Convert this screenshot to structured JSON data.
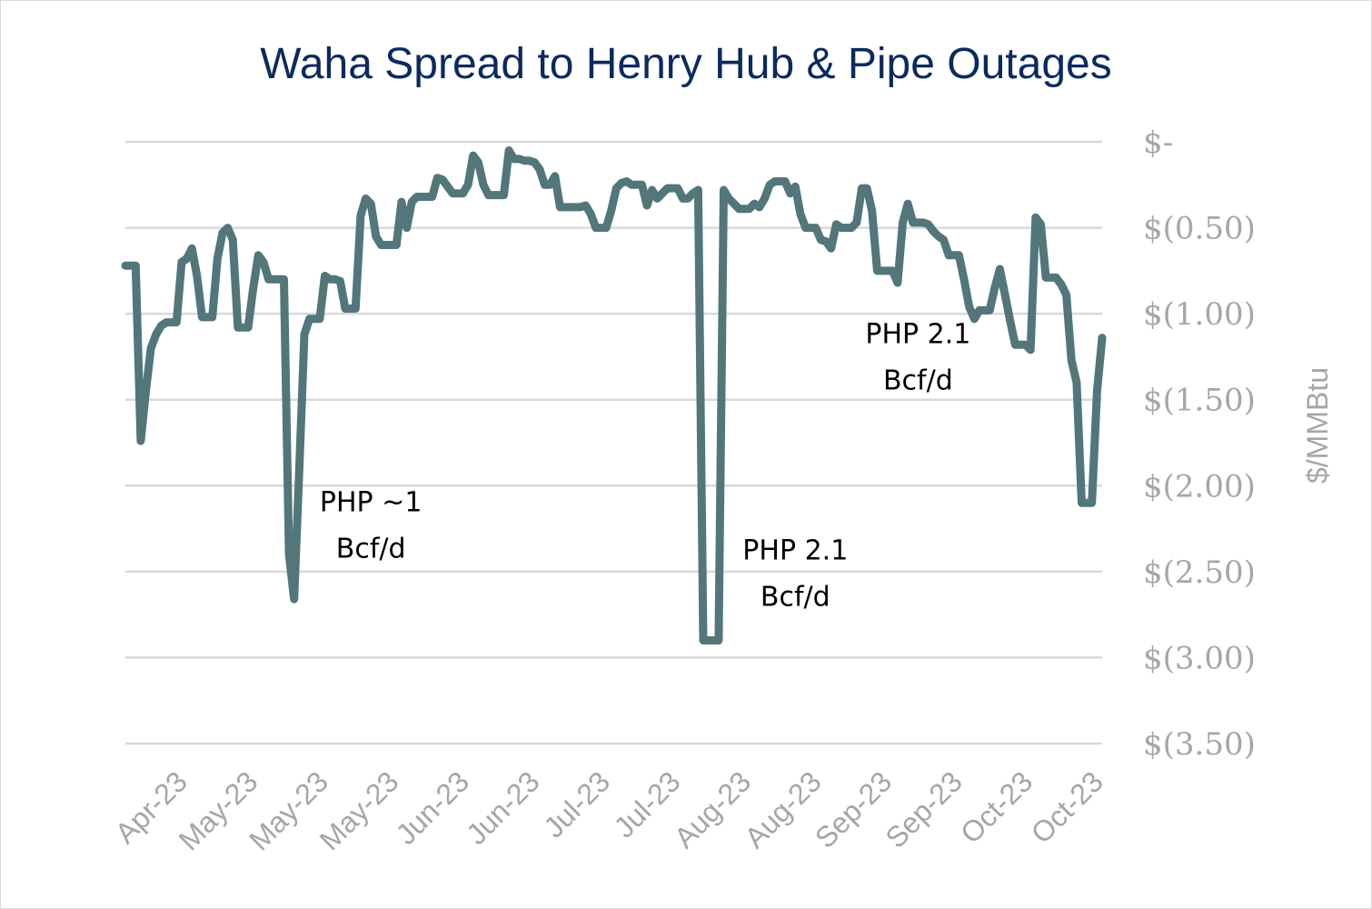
{
  "chart_data": {
    "type": "line",
    "title": "Waha Spread to Henry Hub & Pipe Outages",
    "ylabel": "$/MMBtu",
    "xlabel": "",
    "ylim": [
      -3.5,
      0
    ],
    "yticks": [
      {
        "value": 0,
        "label": "$-"
      },
      {
        "value": -0.5,
        "label": "$(0.50)"
      },
      {
        "value": -1.0,
        "label": "$(1.00)"
      },
      {
        "value": -1.5,
        "label": "$(1.50)"
      },
      {
        "value": -2.0,
        "label": "$(2.00)"
      },
      {
        "value": -2.5,
        "label": "$(2.50)"
      },
      {
        "value": -3.0,
        "label": "$(3.00)"
      },
      {
        "value": -3.5,
        "label": "$(3.50)"
      }
    ],
    "xticks": [
      "Apr-23",
      "May-23",
      "May-23",
      "May-23",
      "Jun-23",
      "Jun-23",
      "Jul-23",
      "Jul-23",
      "Aug-23",
      "Aug-23",
      "Sep-23",
      "Sep-23",
      "Oct-23",
      "Oct-23"
    ],
    "grid": true,
    "series": [
      {
        "color": "#52767a",
        "values": [
          -0.72,
          -0.72,
          -0.72,
          -1.74,
          -1.45,
          -1.2,
          -1.12,
          -1.07,
          -1.05,
          -1.05,
          -1.05,
          -0.7,
          -0.68,
          -0.62,
          -0.78,
          -1.02,
          -1.02,
          -1.02,
          -0.68,
          -0.53,
          -0.5,
          -0.57,
          -1.08,
          -1.08,
          -1.08,
          -0.85,
          -0.66,
          -0.7,
          -0.8,
          -0.8,
          -0.8,
          -0.8,
          -2.4,
          -2.66,
          -1.9,
          -1.12,
          -1.03,
          -1.03,
          -1.03,
          -0.78,
          -0.8,
          -0.8,
          -0.81,
          -0.97,
          -0.97,
          -0.97,
          -0.43,
          -0.33,
          -0.36,
          -0.55,
          -0.6,
          -0.6,
          -0.6,
          -0.6,
          -0.35,
          -0.5,
          -0.35,
          -0.32,
          -0.32,
          -0.32,
          -0.32,
          -0.21,
          -0.22,
          -0.26,
          -0.3,
          -0.3,
          -0.3,
          -0.25,
          -0.08,
          -0.12,
          -0.25,
          -0.31,
          -0.31,
          -0.31,
          -0.31,
          -0.05,
          -0.1,
          -0.1,
          -0.11,
          -0.11,
          -0.12,
          -0.16,
          -0.25,
          -0.25,
          -0.2,
          -0.38,
          -0.38,
          -0.38,
          -0.38,
          -0.38,
          -0.37,
          -0.42,
          -0.5,
          -0.5,
          -0.5,
          -0.4,
          -0.27,
          -0.24,
          -0.23,
          -0.25,
          -0.25,
          -0.25,
          -0.37,
          -0.28,
          -0.33,
          -0.3,
          -0.27,
          -0.27,
          -0.27,
          -0.33,
          -0.33,
          -0.3,
          -0.28,
          -2.9,
          -2.9,
          -2.9,
          -2.9,
          -0.28,
          -0.33,
          -0.36,
          -0.39,
          -0.39,
          -0.39,
          -0.36,
          -0.38,
          -0.33,
          -0.25,
          -0.23,
          -0.23,
          -0.23,
          -0.3,
          -0.26,
          -0.42,
          -0.5,
          -0.5,
          -0.5,
          -0.57,
          -0.58,
          -0.62,
          -0.48,
          -0.5,
          -0.5,
          -0.5,
          -0.47,
          -0.27,
          -0.27,
          -0.4,
          -0.75,
          -0.75,
          -0.75,
          -0.75,
          -0.82,
          -0.47,
          -0.36,
          -0.47,
          -0.47,
          -0.47,
          -0.48,
          -0.52,
          -0.55,
          -0.57,
          -0.66,
          -0.66,
          -0.66,
          -0.8,
          -0.96,
          -1.03,
          -0.98,
          -0.98,
          -0.98,
          -0.85,
          -0.74,
          -0.89,
          -1.04,
          -1.18,
          -1.18,
          -1.18,
          -1.21,
          -0.44,
          -0.48,
          -0.79,
          -0.79,
          -0.79,
          -0.83,
          -0.89,
          -1.27,
          -1.4,
          -2.1,
          -2.1,
          -2.1,
          -1.45,
          -1.14
        ]
      }
    ],
    "annotations": [
      {
        "lines": [
          "PHP ~1",
          "Bcf/d"
        ],
        "x_index": 48,
        "y": -2.15
      },
      {
        "lines": [
          "PHP 2.1",
          "Bcf/d"
        ],
        "x_index": 131,
        "y": -2.43
      },
      {
        "lines": [
          "PHP 2.1",
          "Bcf/d"
        ],
        "x_index": 155,
        "y": -1.17
      }
    ]
  }
}
